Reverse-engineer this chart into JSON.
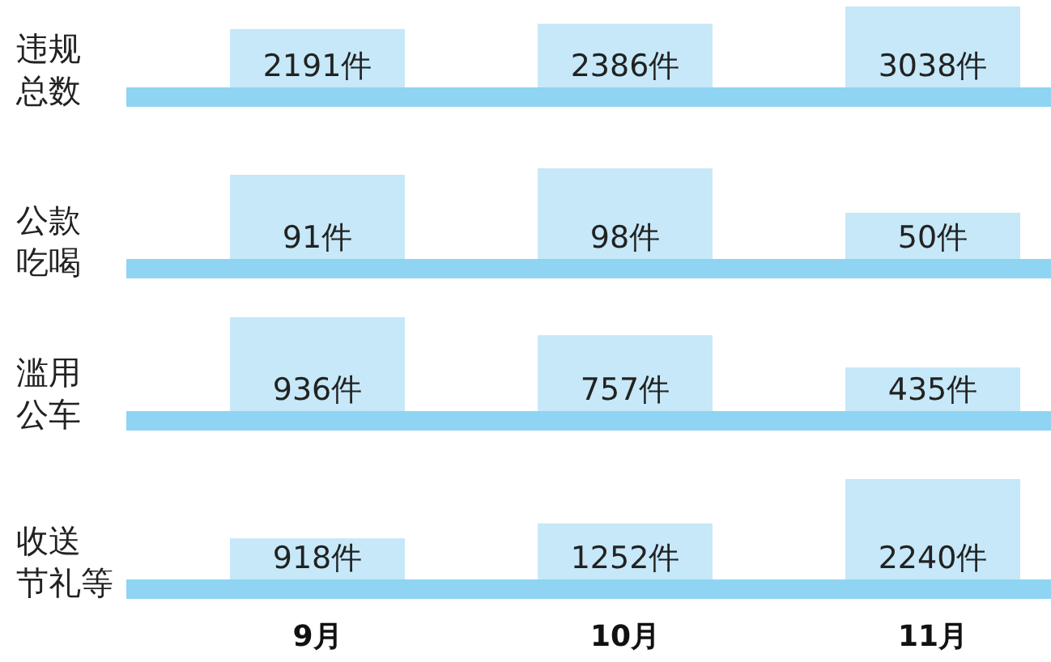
{
  "chart_data": [
    {
      "type": "bar",
      "title": "违规总数",
      "categories": [
        null,
        null,
        null
      ],
      "values": [
        2191,
        2386,
        3038
      ],
      "value_labels": [
        "2191件",
        "2386件",
        "3038件"
      ],
      "color": "#c6e8f8",
      "tick_labels": false
    },
    {
      "type": "bar",
      "title": "公款吃喝",
      "categories": [
        null,
        null,
        null
      ],
      "values": [
        91,
        98,
        50
      ],
      "value_labels": [
        "91件",
        "98件",
        "50件"
      ],
      "color": "#c6e8f8",
      "tick_labels": false
    },
    {
      "type": "bar",
      "title": "滥用公车",
      "categories": [
        null,
        null,
        null
      ],
      "values": [
        936,
        757,
        435
      ],
      "value_labels": [
        "936件",
        "757件",
        "435件"
      ],
      "color": "#c6e8f8",
      "tick_labels": false
    },
    {
      "type": "bar",
      "title": "收送节礼等",
      "categories": [
        "9月",
        "10月",
        "11月"
      ],
      "values": [
        918,
        1252,
        2240
      ],
      "value_labels": [
        "918件",
        "1252件",
        "2240件"
      ],
      "color": "#c6e8f8",
      "tick_labels": "x"
    }
  ]
}
